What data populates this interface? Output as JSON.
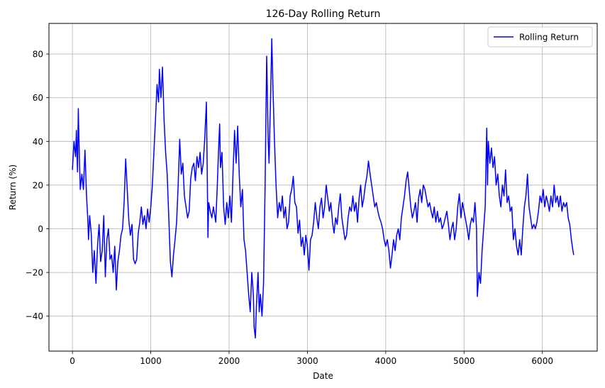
{
  "chart_data": {
    "type": "line",
    "title": "126-Day Rolling Return",
    "xlabel": "Date",
    "ylabel": "Return (%)",
    "xlim": [
      -300,
      6700
    ],
    "ylim": [
      -56,
      94
    ],
    "x_ticks": [
      0,
      1000,
      2000,
      3000,
      4000,
      5000,
      6000
    ],
    "y_ticks": [
      -40,
      -20,
      0,
      20,
      40,
      60,
      80
    ],
    "grid": true,
    "legend_position": "top-right",
    "series": [
      {
        "name": "Rolling Return",
        "color": "#0000ff",
        "points": [
          [
            0,
            27
          ],
          [
            20,
            40
          ],
          [
            40,
            33
          ],
          [
            50,
            45
          ],
          [
            65,
            26
          ],
          [
            75,
            55
          ],
          [
            90,
            30
          ],
          [
            100,
            18
          ],
          [
            120,
            25
          ],
          [
            140,
            18
          ],
          [
            160,
            36
          ],
          [
            180,
            15
          ],
          [
            195,
            5
          ],
          [
            205,
            -5
          ],
          [
            220,
            6
          ],
          [
            240,
            -2
          ],
          [
            260,
            -20
          ],
          [
            280,
            -10
          ],
          [
            300,
            -25
          ],
          [
            320,
            -8
          ],
          [
            340,
            2
          ],
          [
            360,
            -15
          ],
          [
            380,
            -10
          ],
          [
            400,
            6
          ],
          [
            420,
            -22
          ],
          [
            440,
            -5
          ],
          [
            460,
            0
          ],
          [
            480,
            -14
          ],
          [
            500,
            -12
          ],
          [
            520,
            -20
          ],
          [
            540,
            -8
          ],
          [
            560,
            -28
          ],
          [
            580,
            -15
          ],
          [
            600,
            -10
          ],
          [
            620,
            -3
          ],
          [
            640,
            0
          ],
          [
            660,
            12
          ],
          [
            680,
            32
          ],
          [
            700,
            18
          ],
          [
            720,
            4
          ],
          [
            740,
            -3
          ],
          [
            760,
            2
          ],
          [
            780,
            -14
          ],
          [
            800,
            -16
          ],
          [
            820,
            -14
          ],
          [
            840,
            -2
          ],
          [
            860,
            3
          ],
          [
            880,
            10
          ],
          [
            900,
            2
          ],
          [
            920,
            6
          ],
          [
            940,
            0
          ],
          [
            960,
            9
          ],
          [
            980,
            3
          ],
          [
            1000,
            10
          ],
          [
            1020,
            20
          ],
          [
            1040,
            35
          ],
          [
            1060,
            50
          ],
          [
            1080,
            66
          ],
          [
            1100,
            58
          ],
          [
            1110,
            73
          ],
          [
            1130,
            60
          ],
          [
            1150,
            74
          ],
          [
            1170,
            50
          ],
          [
            1190,
            35
          ],
          [
            1210,
            25
          ],
          [
            1230,
            5
          ],
          [
            1250,
            -15
          ],
          [
            1270,
            -22
          ],
          [
            1290,
            -12
          ],
          [
            1310,
            -5
          ],
          [
            1330,
            3
          ],
          [
            1350,
            20
          ],
          [
            1370,
            41
          ],
          [
            1390,
            25
          ],
          [
            1410,
            30
          ],
          [
            1430,
            15
          ],
          [
            1450,
            10
          ],
          [
            1470,
            5
          ],
          [
            1490,
            8
          ],
          [
            1510,
            23
          ],
          [
            1530,
            28
          ],
          [
            1550,
            30
          ],
          [
            1570,
            22
          ],
          [
            1590,
            33
          ],
          [
            1610,
            28
          ],
          [
            1630,
            35
          ],
          [
            1650,
            25
          ],
          [
            1670,
            30
          ],
          [
            1690,
            42
          ],
          [
            1710,
            58
          ],
          [
            1720,
            28
          ],
          [
            1730,
            -4
          ],
          [
            1740,
            12
          ],
          [
            1760,
            8
          ],
          [
            1780,
            5
          ],
          [
            1800,
            10
          ],
          [
            1830,
            3
          ],
          [
            1850,
            20
          ],
          [
            1870,
            40
          ],
          [
            1880,
            48
          ],
          [
            1890,
            28
          ],
          [
            1910,
            35
          ],
          [
            1930,
            10
          ],
          [
            1950,
            2
          ],
          [
            1970,
            12
          ],
          [
            1990,
            5
          ],
          [
            2010,
            15
          ],
          [
            2030,
            3
          ],
          [
            2050,
            25
          ],
          [
            2070,
            45
          ],
          [
            2090,
            30
          ],
          [
            2110,
            47
          ],
          [
            2130,
            25
          ],
          [
            2150,
            10
          ],
          [
            2170,
            18
          ],
          [
            2190,
            -5
          ],
          [
            2210,
            -10
          ],
          [
            2230,
            -20
          ],
          [
            2250,
            -30
          ],
          [
            2270,
            -38
          ],
          [
            2290,
            -20
          ],
          [
            2310,
            -30
          ],
          [
            2320,
            -45
          ],
          [
            2335,
            -50
          ],
          [
            2350,
            -35
          ],
          [
            2370,
            -20
          ],
          [
            2385,
            -38
          ],
          [
            2400,
            -30
          ],
          [
            2420,
            -40
          ],
          [
            2440,
            -25
          ],
          [
            2460,
            20
          ],
          [
            2470,
            50
          ],
          [
            2480,
            79
          ],
          [
            2500,
            40
          ],
          [
            2510,
            30
          ],
          [
            2530,
            60
          ],
          [
            2545,
            87
          ],
          [
            2560,
            65
          ],
          [
            2580,
            40
          ],
          [
            2600,
            20
          ],
          [
            2620,
            5
          ],
          [
            2640,
            12
          ],
          [
            2660,
            8
          ],
          [
            2680,
            15
          ],
          [
            2700,
            5
          ],
          [
            2720,
            10
          ],
          [
            2740,
            0
          ],
          [
            2760,
            3
          ],
          [
            2780,
            15
          ],
          [
            2800,
            18
          ],
          [
            2820,
            24
          ],
          [
            2840,
            12
          ],
          [
            2860,
            10
          ],
          [
            2880,
            -2
          ],
          [
            2900,
            4
          ],
          [
            2920,
            -8
          ],
          [
            2940,
            -4
          ],
          [
            2960,
            -12
          ],
          [
            2980,
            -3
          ],
          [
            3000,
            -8
          ],
          [
            3020,
            -19
          ],
          [
            3040,
            -5
          ],
          [
            3060,
            -3
          ],
          [
            3080,
            3
          ],
          [
            3100,
            12
          ],
          [
            3120,
            5
          ],
          [
            3140,
            0
          ],
          [
            3160,
            10
          ],
          [
            3180,
            14
          ],
          [
            3200,
            5
          ],
          [
            3220,
            10
          ],
          [
            3240,
            20
          ],
          [
            3260,
            14
          ],
          [
            3280,
            8
          ],
          [
            3300,
            12
          ],
          [
            3320,
            3
          ],
          [
            3340,
            -2
          ],
          [
            3360,
            5
          ],
          [
            3380,
            2
          ],
          [
            3400,
            10
          ],
          [
            3420,
            16
          ],
          [
            3440,
            5
          ],
          [
            3460,
            0
          ],
          [
            3480,
            -5
          ],
          [
            3500,
            -3
          ],
          [
            3520,
            5
          ],
          [
            3540,
            10
          ],
          [
            3560,
            8
          ],
          [
            3580,
            15
          ],
          [
            3600,
            8
          ],
          [
            3620,
            12
          ],
          [
            3640,
            3
          ],
          [
            3660,
            14
          ],
          [
            3680,
            20
          ],
          [
            3700,
            10
          ],
          [
            3720,
            14
          ],
          [
            3740,
            20
          ],
          [
            3760,
            24
          ],
          [
            3780,
            31
          ],
          [
            3800,
            25
          ],
          [
            3820,
            20
          ],
          [
            3840,
            15
          ],
          [
            3860,
            10
          ],
          [
            3880,
            12
          ],
          [
            3900,
            8
          ],
          [
            3920,
            5
          ],
          [
            3940,
            3
          ],
          [
            3960,
            0
          ],
          [
            3980,
            -5
          ],
          [
            4000,
            -8
          ],
          [
            4020,
            -5
          ],
          [
            4040,
            -10
          ],
          [
            4060,
            -18
          ],
          [
            4080,
            -12
          ],
          [
            4100,
            -5
          ],
          [
            4120,
            -10
          ],
          [
            4140,
            -3
          ],
          [
            4160,
            0
          ],
          [
            4180,
            -5
          ],
          [
            4200,
            5
          ],
          [
            4220,
            10
          ],
          [
            4240,
            15
          ],
          [
            4260,
            22
          ],
          [
            4280,
            26
          ],
          [
            4300,
            18
          ],
          [
            4320,
            10
          ],
          [
            4340,
            5
          ],
          [
            4360,
            8
          ],
          [
            4380,
            12
          ],
          [
            4400,
            3
          ],
          [
            4420,
            14
          ],
          [
            4440,
            18
          ],
          [
            4460,
            12
          ],
          [
            4480,
            20
          ],
          [
            4500,
            18
          ],
          [
            4520,
            14
          ],
          [
            4540,
            10
          ],
          [
            4560,
            12
          ],
          [
            4580,
            8
          ],
          [
            4600,
            5
          ],
          [
            4620,
            10
          ],
          [
            4640,
            3
          ],
          [
            4660,
            8
          ],
          [
            4680,
            3
          ],
          [
            4700,
            5
          ],
          [
            4720,
            0
          ],
          [
            4740,
            2
          ],
          [
            4760,
            5
          ],
          [
            4780,
            8
          ],
          [
            4800,
            2
          ],
          [
            4820,
            -5
          ],
          [
            4840,
            0
          ],
          [
            4860,
            3
          ],
          [
            4880,
            -5
          ],
          [
            4900,
            0
          ],
          [
            4920,
            10
          ],
          [
            4940,
            16
          ],
          [
            4960,
            5
          ],
          [
            4980,
            12
          ],
          [
            5000,
            8
          ],
          [
            5020,
            4
          ],
          [
            5040,
            0
          ],
          [
            5060,
            -5
          ],
          [
            5080,
            2
          ],
          [
            5100,
            5
          ],
          [
            5120,
            3
          ],
          [
            5140,
            12
          ],
          [
            5160,
            0
          ],
          [
            5170,
            -31
          ],
          [
            5190,
            -20
          ],
          [
            5210,
            -25
          ],
          [
            5230,
            -10
          ],
          [
            5250,
            0
          ],
          [
            5270,
            10
          ],
          [
            5280,
            30
          ],
          [
            5290,
            46
          ],
          [
            5300,
            20
          ],
          [
            5310,
            40
          ],
          [
            5330,
            30
          ],
          [
            5350,
            37
          ],
          [
            5370,
            28
          ],
          [
            5390,
            33
          ],
          [
            5410,
            20
          ],
          [
            5430,
            25
          ],
          [
            5450,
            15
          ],
          [
            5470,
            10
          ],
          [
            5490,
            20
          ],
          [
            5510,
            15
          ],
          [
            5530,
            27
          ],
          [
            5550,
            12
          ],
          [
            5570,
            15
          ],
          [
            5590,
            8
          ],
          [
            5610,
            10
          ],
          [
            5630,
            -5
          ],
          [
            5650,
            0
          ],
          [
            5670,
            -8
          ],
          [
            5690,
            -12
          ],
          [
            5710,
            -5
          ],
          [
            5730,
            -12
          ],
          [
            5750,
            0
          ],
          [
            5770,
            10
          ],
          [
            5790,
            15
          ],
          [
            5810,
            25
          ],
          [
            5830,
            10
          ],
          [
            5850,
            5
          ],
          [
            5870,
            0
          ],
          [
            5890,
            2
          ],
          [
            5910,
            0
          ],
          [
            5930,
            3
          ],
          [
            5950,
            8
          ],
          [
            5970,
            15
          ],
          [
            5990,
            12
          ],
          [
            6010,
            18
          ],
          [
            6030,
            10
          ],
          [
            6050,
            15
          ],
          [
            6070,
            12
          ],
          [
            6090,
            8
          ],
          [
            6110,
            15
          ],
          [
            6130,
            10
          ],
          [
            6150,
            20
          ],
          [
            6170,
            12
          ],
          [
            6190,
            15
          ],
          [
            6210,
            10
          ],
          [
            6230,
            15
          ],
          [
            6250,
            8
          ],
          [
            6270,
            12
          ],
          [
            6290,
            10
          ],
          [
            6310,
            12
          ],
          [
            6330,
            5
          ],
          [
            6350,
            2
          ],
          [
            6370,
            -5
          ],
          [
            6390,
            -10
          ],
          [
            6400,
            -12
          ]
        ]
      }
    ]
  }
}
